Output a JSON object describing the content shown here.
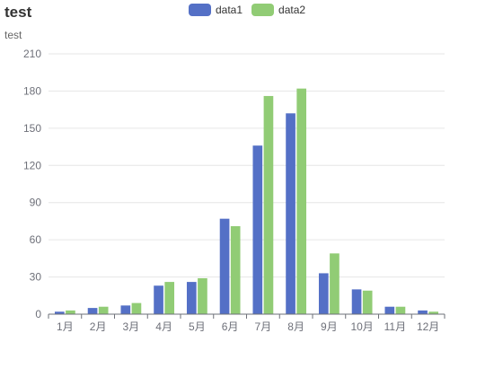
{
  "chart_data": {
    "type": "bar",
    "title": "test",
    "subtitle": "test",
    "categories": [
      "1月",
      "2月",
      "3月",
      "4月",
      "5月",
      "6月",
      "7月",
      "8月",
      "9月",
      "10月",
      "11月",
      "12月"
    ],
    "series": [
      {
        "name": "data1",
        "color": "#5470c6",
        "values": [
          2,
          5,
          7,
          23,
          26,
          77,
          136,
          162,
          33,
          20,
          6,
          3
        ]
      },
      {
        "name": "data2",
        "color": "#91cc75",
        "values": [
          3,
          6,
          9,
          26,
          29,
          71,
          176,
          182,
          49,
          19,
          6,
          2
        ]
      }
    ],
    "ylim": [
      0,
      210
    ],
    "yticks": [
      0,
      30,
      60,
      90,
      120,
      150,
      180,
      210
    ],
    "grid": "horizontal",
    "legend_position": "top-center"
  }
}
